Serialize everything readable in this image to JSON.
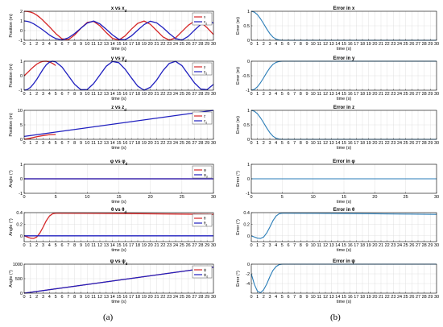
{
  "captions": {
    "a": "(a)",
    "b": "(b)"
  },
  "colors": {
    "actual": "#d62728",
    "desired": "#1f1fbf",
    "error": "#2a7db8",
    "grid": "#d9d9d9"
  },
  "chart_data": [
    {
      "type": "line",
      "title": "x vs x_d",
      "xlabel": "time (s)",
      "ylabel": "Position (m)",
      "xlim": [
        0,
        30
      ],
      "ylim": [
        -1,
        2
      ],
      "xticks": [
        0,
        1,
        2,
        3,
        4,
        5,
        6,
        7,
        8,
        9,
        10,
        11,
        12,
        13,
        14,
        15,
        16,
        17,
        18,
        19,
        20,
        21,
        22,
        23,
        24,
        25,
        26,
        27,
        28,
        29,
        30
      ],
      "yticks": [
        -1,
        0,
        1,
        2
      ],
      "legend": [
        "x",
        "x_d"
      ],
      "legend_position": "top-right",
      "grid": true,
      "series": [
        {
          "name": "x",
          "color": "actual",
          "x": [
            0,
            0.5,
            1,
            1.5,
            2,
            2.5,
            3,
            3.5,
            4,
            4.5,
            5,
            6,
            7,
            8,
            9,
            10,
            11,
            12,
            13,
            14,
            15,
            16,
            17,
            18,
            19,
            20,
            21,
            22,
            23,
            24,
            25,
            26,
            27,
            28,
            29,
            30
          ],
          "y": [
            2,
            1.98,
            1.92,
            1.8,
            1.6,
            1.35,
            1.05,
            0.72,
            0.4,
            0.05,
            -0.3,
            -0.85,
            -0.95,
            -0.45,
            0.25,
            0.85,
            0.95,
            0.5,
            -0.2,
            -0.8,
            -0.98,
            -0.55,
            0.15,
            0.75,
            0.99,
            0.65,
            0.0,
            -0.65,
            -0.99,
            -0.75,
            -0.1,
            0.55,
            0.98,
            0.85,
            0.3,
            -0.4
          ]
        },
        {
          "name": "x_d",
          "color": "desired",
          "x": [
            0,
            0.5,
            1,
            1.5,
            2,
            2.5,
            3,
            3.5,
            4,
            4.5,
            5,
            6,
            7,
            8,
            9,
            10,
            11,
            12,
            13,
            14,
            15,
            16,
            17,
            18,
            19,
            20,
            21,
            22,
            23,
            24,
            25,
            26,
            27,
            28,
            29,
            30
          ],
          "y": [
            1,
            0.96,
            0.86,
            0.7,
            0.5,
            0.28,
            0.05,
            -0.2,
            -0.45,
            -0.65,
            -0.82,
            -0.97,
            -0.75,
            -0.3,
            0.25,
            0.78,
            0.99,
            0.7,
            0.15,
            -0.45,
            -0.9,
            -0.95,
            -0.55,
            0.05,
            0.62,
            0.97,
            0.8,
            0.3,
            -0.3,
            -0.82,
            -0.98,
            -0.6,
            0.05,
            0.65,
            0.99,
            0.78
          ]
        }
      ]
    },
    {
      "type": "line",
      "title": "y vs y_d",
      "xlabel": "time (s)",
      "ylabel": "Position (m)",
      "xlim": [
        0,
        30
      ],
      "ylim": [
        -1,
        1
      ],
      "xticks": [
        0,
        1,
        2,
        3,
        4,
        5,
        6,
        7,
        8,
        9,
        10,
        11,
        12,
        13,
        14,
        15,
        16,
        17,
        18,
        19,
        20,
        21,
        22,
        23,
        24,
        25,
        26,
        27,
        28,
        29,
        30
      ],
      "yticks": [
        -1,
        0,
        1
      ],
      "legend": [
        "y",
        "y_d"
      ],
      "legend_position": "top-right",
      "grid": true,
      "series": [
        {
          "name": "y",
          "color": "actual",
          "x": [
            0,
            0.5,
            1,
            1.5,
            2,
            2.5,
            3,
            3.5,
            4,
            4.5,
            5
          ],
          "y": [
            0,
            0.2,
            0.42,
            0.62,
            0.8,
            0.92,
            0.99,
            1.0,
            0.95,
            0.85,
            0.7
          ]
        },
        {
          "name": "y_d",
          "color": "desired",
          "x": [
            0,
            0.5,
            1,
            1.5,
            2,
            2.5,
            3,
            3.5,
            4,
            4.5,
            5,
            6,
            7,
            8,
            9,
            10,
            11,
            12,
            13,
            14,
            15,
            16,
            17,
            18,
            19,
            20,
            21,
            22,
            23,
            24,
            25,
            26,
            27,
            28,
            29,
            30
          ],
          "y": [
            -1,
            -0.95,
            -0.8,
            -0.55,
            -0.25,
            0.1,
            0.45,
            0.75,
            0.93,
            1.0,
            0.95,
            0.6,
            0.0,
            -0.6,
            -0.97,
            -0.95,
            -0.55,
            0.05,
            0.65,
            0.98,
            0.9,
            0.45,
            -0.15,
            -0.72,
            -1.0,
            -0.8,
            -0.3,
            0.35,
            0.85,
            0.99,
            0.7,
            0.1,
            -0.5,
            -0.92,
            -0.96,
            -0.6
          ]
        }
      ]
    },
    {
      "type": "line",
      "title": "z vs z_d",
      "xlabel": "time (s)",
      "ylabel": "Position (m)",
      "xlim": [
        0,
        30
      ],
      "ylim": [
        0,
        10
      ],
      "xticks": [
        0,
        1,
        2,
        3,
        4,
        5,
        6,
        7,
        8,
        9,
        10,
        11,
        12,
        13,
        14,
        15,
        16,
        17,
        18,
        19,
        20,
        21,
        22,
        23,
        24,
        25,
        26,
        27,
        28,
        29,
        30
      ],
      "yticks": [
        0,
        5,
        10
      ],
      "legend": [
        "z",
        "z_d"
      ],
      "legend_position": "top-right",
      "grid": true,
      "series": [
        {
          "name": "z",
          "color": "actual",
          "x": [
            0,
            1,
            2,
            3,
            4,
            5
          ],
          "y": [
            0,
            0.4,
            0.9,
            1.3,
            1.6,
            1.7
          ]
        },
        {
          "name": "z_d",
          "color": "desired",
          "x": [
            0,
            30
          ],
          "y": [
            1,
            10
          ]
        }
      ]
    },
    {
      "type": "line",
      "title": "φ vs φ_d",
      "xlabel": "time (s)",
      "ylabel": "Angle (°)",
      "xlim": [
        0,
        30
      ],
      "ylim": [
        -1,
        1
      ],
      "xticks": [
        0,
        5,
        10,
        15,
        20,
        25,
        30
      ],
      "yticks": [
        -1,
        0,
        1
      ],
      "legend": [
        "φ",
        "φ_d"
      ],
      "legend_position": "top-right",
      "grid": true,
      "series": [
        {
          "name": "φ",
          "color": "actual",
          "x": [
            0,
            30
          ],
          "y": [
            0,
            0
          ]
        },
        {
          "name": "φ_d",
          "color": "desired",
          "x": [
            0,
            30
          ],
          "y": [
            0,
            0
          ]
        }
      ]
    },
    {
      "type": "line",
      "title": "θ vs θ_d",
      "xlabel": "time (s)",
      "ylabel": "Angle (°)",
      "xlim": [
        0,
        30
      ],
      "ylim": [
        -0.1,
        0.4
      ],
      "xticks": [
        0,
        1,
        2,
        3,
        4,
        5,
        6,
        7,
        8,
        9,
        10,
        11,
        12,
        13,
        14,
        15,
        16,
        17,
        18,
        19,
        20,
        21,
        22,
        23,
        24,
        25,
        26,
        27,
        28,
        29,
        30
      ],
      "yticks": [
        0,
        0.2,
        0.4
      ],
      "legend": [
        "θ",
        "θ_d"
      ],
      "legend_position": "top-right",
      "grid": true,
      "series": [
        {
          "name": "θ",
          "color": "actual",
          "x": [
            0,
            0.5,
            1,
            1.5,
            2,
            2.5,
            3,
            3.5,
            4,
            4.5,
            5,
            6,
            10,
            15,
            20,
            25,
            30
          ],
          "y": [
            0,
            -0.02,
            -0.04,
            -0.045,
            -0.02,
            0.05,
            0.15,
            0.26,
            0.34,
            0.38,
            0.39,
            0.39,
            0.388,
            0.385,
            0.38,
            0.375,
            0.37
          ]
        },
        {
          "name": "θ_d",
          "color": "desired",
          "x": [
            0,
            30
          ],
          "y": [
            0,
            0
          ]
        }
      ]
    },
    {
      "type": "line",
      "title": "ψ vs ψ_d",
      "xlabel": "time (s)",
      "ylabel": "Angle (°)",
      "xlim": [
        0,
        30
      ],
      "ylim": [
        0,
        1000
      ],
      "xticks": [
        0,
        1,
        2,
        3,
        4,
        5,
        6,
        7,
        8,
        9,
        10,
        11,
        12,
        13,
        14,
        15,
        16,
        17,
        18,
        19,
        20,
        21,
        22,
        23,
        24,
        25,
        26,
        27,
        28,
        29,
        30
      ],
      "yticks": [
        0,
        500,
        1000
      ],
      "legend": [
        "ψ",
        "ψ_d"
      ],
      "legend_position": "top-right",
      "grid": true,
      "series": [
        {
          "name": "ψ",
          "color": "actual",
          "x": [
            0,
            30
          ],
          "y": [
            0,
            900
          ]
        },
        {
          "name": "ψ_d",
          "color": "desired",
          "x": [
            0,
            30
          ],
          "y": [
            0,
            900
          ]
        }
      ]
    },
    {
      "type": "line",
      "title": "Error in x",
      "xlabel": "time (s)",
      "ylabel": "Error (m)",
      "xlim": [
        0,
        30
      ],
      "ylim": [
        0,
        1
      ],
      "xticks": [
        0,
        1,
        2,
        3,
        4,
        5,
        6,
        7,
        8,
        9,
        10,
        11,
        12,
        13,
        14,
        15,
        16,
        17,
        18,
        19,
        20,
        21,
        22,
        23,
        24,
        25,
        26,
        27,
        28,
        29,
        30
      ],
      "yticks": [
        0,
        0.5,
        1
      ],
      "grid": true,
      "series": [
        {
          "color": "error",
          "x": [
            0,
            0.5,
            1,
            1.5,
            2,
            2.5,
            3,
            3.5,
            4,
            4.5,
            5,
            30
          ],
          "y": [
            1,
            0.97,
            0.88,
            0.74,
            0.57,
            0.39,
            0.23,
            0.11,
            0.04,
            0.01,
            0,
            0
          ]
        }
      ]
    },
    {
      "type": "line",
      "title": "Error in y",
      "xlabel": "time (s)",
      "ylabel": "Error (m)",
      "xlim": [
        0,
        30
      ],
      "ylim": [
        -1,
        0
      ],
      "xticks": [
        0,
        1,
        2,
        3,
        4,
        5,
        6,
        7,
        8,
        9,
        10,
        11,
        12,
        13,
        14,
        15,
        16,
        17,
        18,
        19,
        20,
        21,
        22,
        23,
        24,
        25,
        26,
        27,
        28,
        29,
        30
      ],
      "yticks": [
        -1,
        -0.5,
        0
      ],
      "grid": true,
      "series": [
        {
          "color": "error",
          "x": [
            0,
            0.5,
            1,
            1.5,
            2,
            2.5,
            3,
            3.5,
            4,
            4.5,
            5,
            30
          ],
          "y": [
            -1,
            -0.97,
            -0.88,
            -0.74,
            -0.57,
            -0.39,
            -0.23,
            -0.11,
            -0.04,
            -0.01,
            0,
            0
          ]
        }
      ]
    },
    {
      "type": "line",
      "title": "Error in z",
      "xlabel": "time (s)",
      "ylabel": "Error (m)",
      "xlim": [
        0,
        30
      ],
      "ylim": [
        0,
        1
      ],
      "xticks": [
        0,
        1,
        2,
        3,
        4,
        5,
        6,
        7,
        8,
        9,
        10,
        11,
        12,
        13,
        14,
        15,
        16,
        17,
        18,
        19,
        20,
        21,
        22,
        23,
        24,
        25,
        26,
        27,
        28,
        29,
        30
      ],
      "yticks": [
        0,
        0.5,
        1
      ],
      "grid": true,
      "series": [
        {
          "color": "error",
          "x": [
            0,
            0.5,
            1,
            1.5,
            2,
            2.5,
            3,
            3.5,
            4,
            4.5,
            5,
            30
          ],
          "y": [
            1,
            0.97,
            0.88,
            0.74,
            0.57,
            0.39,
            0.23,
            0.11,
            0.04,
            0.01,
            0,
            0
          ]
        }
      ]
    },
    {
      "type": "line",
      "title": "Error in φ",
      "xlabel": "time (s)",
      "ylabel": "Error (°)",
      "xlim": [
        0,
        30
      ],
      "ylim": [
        -1,
        1
      ],
      "xticks": [
        0,
        5,
        10,
        15,
        20,
        25,
        30
      ],
      "yticks": [
        -1,
        0,
        1
      ],
      "grid": true,
      "series": [
        {
          "color": "error",
          "x": [
            0,
            30
          ],
          "y": [
            0,
            0
          ]
        }
      ]
    },
    {
      "type": "line",
      "title": "Error in θ",
      "xlabel": "time (s)",
      "ylabel": "Error (°)",
      "xlim": [
        0,
        30
      ],
      "ylim": [
        -0.1,
        0.4
      ],
      "xticks": [
        0,
        1,
        2,
        3,
        4,
        5,
        6,
        7,
        8,
        9,
        10,
        11,
        12,
        13,
        14,
        15,
        16,
        17,
        18,
        19,
        20,
        21,
        22,
        23,
        24,
        25,
        26,
        27,
        28,
        29,
        30
      ],
      "yticks": [
        0,
        0.2,
        0.4
      ],
      "grid": true,
      "series": [
        {
          "color": "error",
          "x": [
            0,
            0.5,
            1,
            1.5,
            2,
            2.5,
            3,
            3.5,
            4,
            4.5,
            5,
            6,
            10,
            15,
            20,
            25,
            30
          ],
          "y": [
            0,
            -0.02,
            -0.04,
            -0.045,
            -0.02,
            0.05,
            0.15,
            0.26,
            0.34,
            0.38,
            0.39,
            0.39,
            0.388,
            0.385,
            0.38,
            0.375,
            0.37
          ]
        }
      ]
    },
    {
      "type": "line",
      "title": "Error in ψ",
      "xlabel": "time (s)",
      "ylabel": "Error (°)",
      "xlim": [
        0,
        30
      ],
      "ylim": [
        -6,
        0
      ],
      "xticks": [
        0,
        1,
        2,
        3,
        4,
        5,
        6,
        7,
        8,
        9,
        10,
        11,
        12,
        13,
        14,
        15,
        16,
        17,
        18,
        19,
        20,
        21,
        22,
        23,
        24,
        25,
        26,
        27,
        28,
        29,
        30
      ],
      "yticks": [
        -4,
        -2,
        0
      ],
      "grid": true,
      "series": [
        {
          "color": "error",
          "x": [
            0,
            0.5,
            1,
            1.5,
            2,
            2.5,
            3,
            3.5,
            4,
            4.5,
            5,
            30
          ],
          "y": [
            -2,
            -4.2,
            -5.6,
            -5.9,
            -5.3,
            -4.1,
            -2.6,
            -1.3,
            -0.5,
            -0.1,
            0,
            0
          ]
        }
      ]
    }
  ]
}
